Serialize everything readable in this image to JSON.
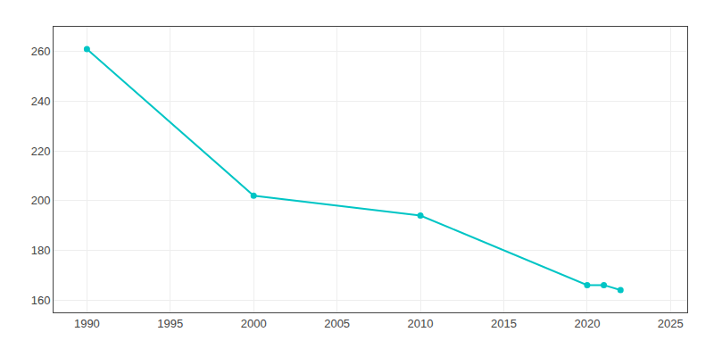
{
  "chart_data": {
    "type": "line",
    "x": [
      1990,
      2000,
      2010,
      2020,
      2021,
      2022
    ],
    "values": [
      261,
      202,
      194,
      166,
      166,
      164
    ],
    "color": "#00C5C5",
    "marker": "circle",
    "xlim": [
      1988,
      2026
    ],
    "ylim": [
      155,
      270
    ],
    "xticks": [
      1990,
      1995,
      2000,
      2005,
      2010,
      2015,
      2020,
      2025
    ],
    "yticks": [
      160,
      180,
      200,
      220,
      240,
      260
    ],
    "grid": true
  }
}
